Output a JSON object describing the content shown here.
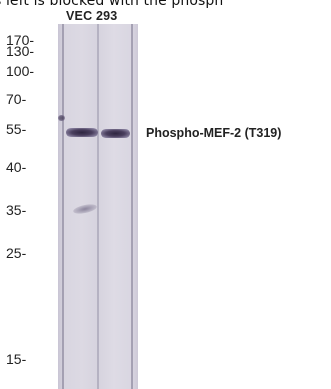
{
  "top_text": "s left is blocked with the phosph",
  "lane_header": "VEC 293",
  "markers": [
    "170-",
    "130-",
    "100-",
    "70-",
    "55-",
    "40-",
    "35-",
    "25-",
    "15-"
  ],
  "band_label": "Phospho-MEF-2 (T319)"
}
